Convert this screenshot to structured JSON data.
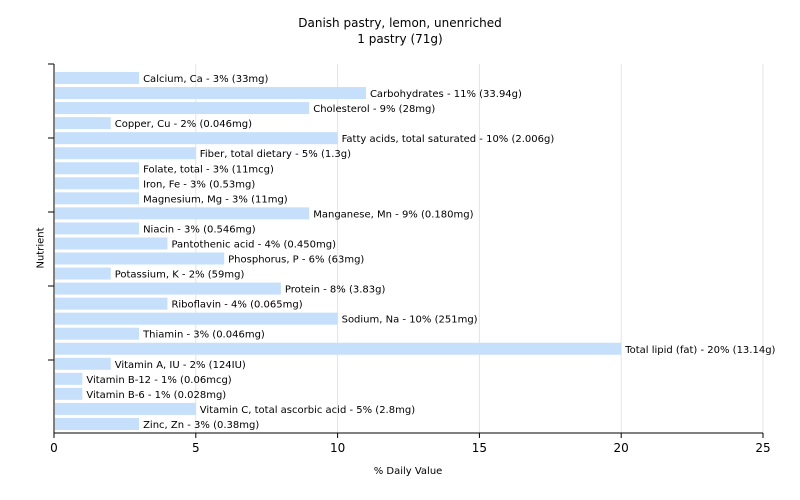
{
  "chart_data": {
    "type": "bar",
    "orientation": "horizontal",
    "title": "Danish pastry, lemon, unenriched",
    "subtitle": "1 pastry (71g)",
    "xlabel": "% Daily Value",
    "ylabel": "Nutrient",
    "xlim": [
      0,
      25
    ],
    "xticks": [
      0,
      5,
      10,
      15,
      20,
      25
    ],
    "grid": true,
    "bar_color": "#c6dffb",
    "categories": [
      "Calcium, Ca - 3% (33mg)",
      "Carbohydrates - 11% (33.94g)",
      "Cholesterol - 9% (28mg)",
      "Copper, Cu - 2% (0.046mg)",
      "Fatty acids, total saturated - 10% (2.006g)",
      "Fiber, total dietary - 5% (1.3g)",
      "Folate, total - 3% (11mcg)",
      "Iron, Fe - 3% (0.53mg)",
      "Magnesium, Mg - 3% (11mg)",
      "Manganese, Mn - 9% (0.180mg)",
      "Niacin - 3% (0.546mg)",
      "Pantothenic acid - 4% (0.450mg)",
      "Phosphorus, P - 6% (63mg)",
      "Potassium, K - 2% (59mg)",
      "Protein - 8% (3.83g)",
      "Riboflavin - 4% (0.065mg)",
      "Sodium, Na - 10% (251mg)",
      "Thiamin - 3% (0.046mg)",
      "Total lipid (fat) - 20% (13.14g)",
      "Vitamin A, IU - 2% (124IU)",
      "Vitamin B-12 - 1% (0.06mcg)",
      "Vitamin B-6 - 1% (0.028mg)",
      "Vitamin C, total ascorbic acid - 5% (2.8mg)",
      "Zinc, Zn - 3% (0.38mg)"
    ],
    "values": [
      3,
      11,
      9,
      2,
      10,
      5,
      3,
      3,
      3,
      9,
      3,
      4,
      6,
      2,
      8,
      4,
      10,
      3,
      20,
      2,
      1,
      1,
      5,
      3
    ]
  }
}
